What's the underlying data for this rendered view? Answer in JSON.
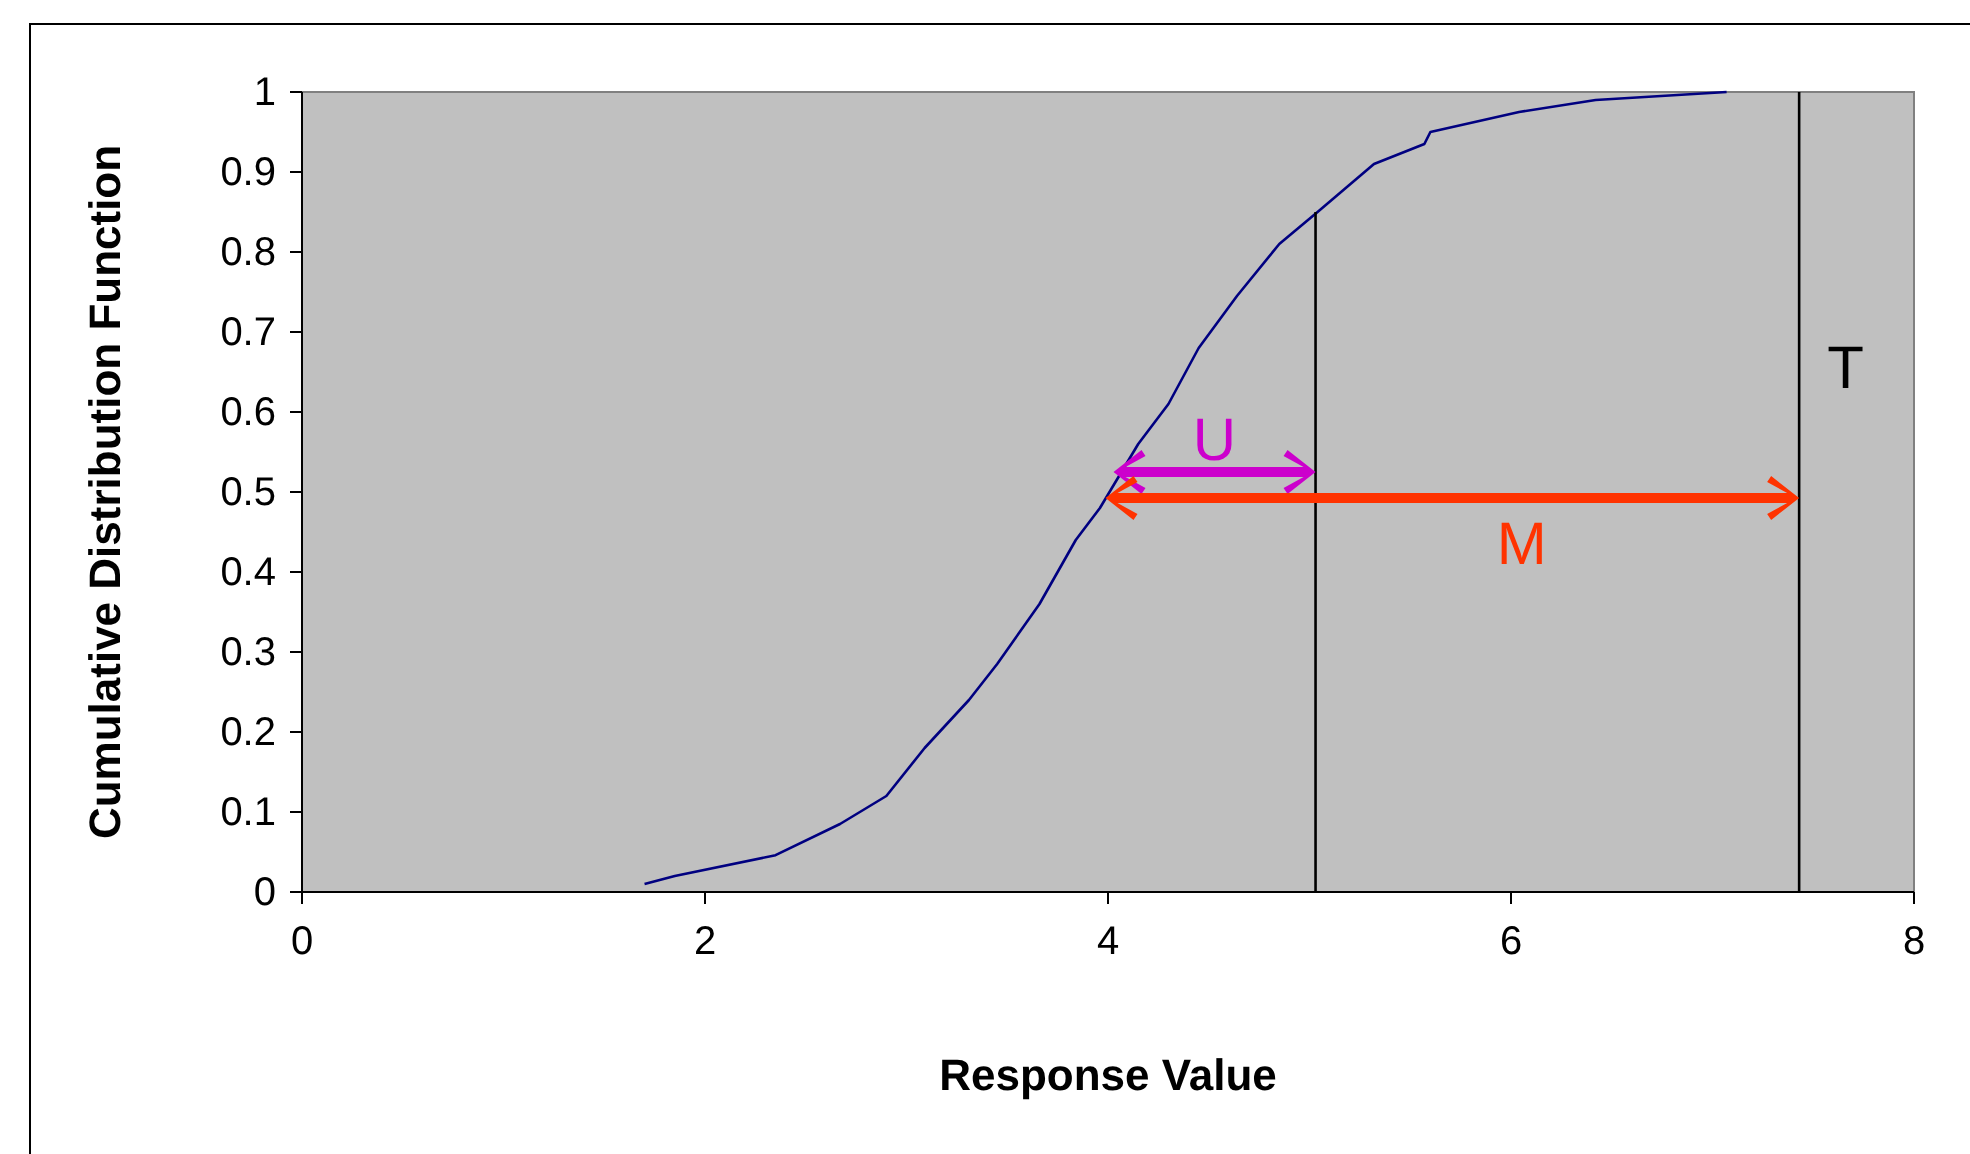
{
  "chart_data": {
    "type": "line",
    "xlabel": "Response Value",
    "ylabel": "Cumulative Distribution Function",
    "xlim": [
      0,
      8
    ],
    "xticks": [
      0,
      2,
      4,
      6,
      8
    ],
    "ylim": [
      0,
      1
    ],
    "yticks": [
      0,
      0.1,
      0.2,
      0.3,
      0.4,
      0.5,
      0.6,
      0.7,
      0.8,
      0.9,
      1
    ],
    "grid": false,
    "series": [
      {
        "color": "#000080",
        "x": [
          1.7,
          1.85,
          2.35,
          2.67,
          2.9,
          3.09,
          3.31,
          3.45,
          3.66,
          3.84,
          3.96,
          4.15,
          4.3,
          4.45,
          4.64,
          4.85,
          5.04,
          5.32,
          5.57,
          5.6,
          6.04,
          6.42,
          7.07
        ],
        "values": [
          0.01,
          0.02,
          0.046,
          0.085,
          0.12,
          0.18,
          0.24,
          0.285,
          0.36,
          0.44,
          0.48,
          0.56,
          0.61,
          0.68,
          0.745,
          0.81,
          0.85,
          0.91,
          0.935,
          0.95,
          0.975,
          0.99,
          1.0
        ]
      },
      {
        "color": "#000000",
        "x": [
          5.03,
          5.03
        ],
        "values": [
          0,
          0.85
        ]
      }
    ],
    "ref_lines": [
      {
        "axis": "x",
        "value": 7.43,
        "label": "T",
        "color": "#000000"
      }
    ],
    "annotations": [
      "U",
      "M"
    ]
  }
}
